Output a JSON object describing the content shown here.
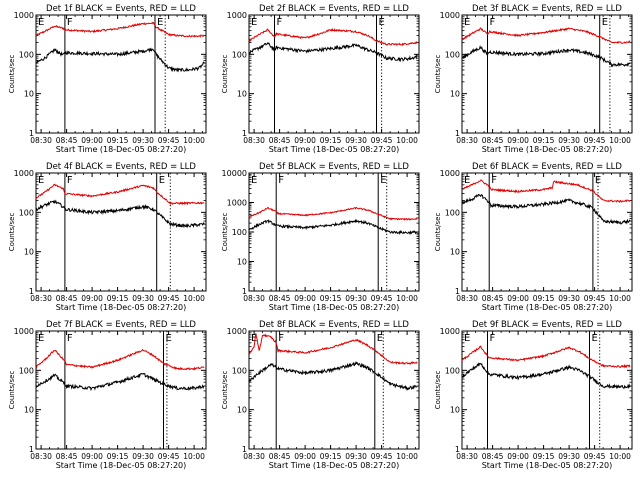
{
  "colors": {
    "events": "#000000",
    "lld": "#e00000",
    "background": "#ffffff",
    "axes": "#000000"
  },
  "common": {
    "xlabel": "Start Time (18-Dec-05 08:27:20)",
    "ylabel": "Counts/sec",
    "x_tick_labels": [
      "08:30",
      "08:45",
      "09:00",
      "09:15",
      "09:30",
      "09:45",
      "10:00"
    ],
    "y_tick_labels": [
      "1",
      "10",
      "100",
      "1000"
    ],
    "region_labels": [
      "E",
      "F",
      "E"
    ]
  },
  "chart_data": [
    {
      "type": "line",
      "title": "Det 1f BLACK = Events, RED = LLD",
      "xlabel": "Start Time (18-Dec-05 08:27:20)",
      "ylabel": "Counts/sec",
      "yscale": "log",
      "ylim": [
        1,
        1000
      ],
      "xlim": [
        "08:27",
        "10:07"
      ],
      "solid_lines": [
        "08:44",
        "09:37"
      ],
      "dotted_lines": [
        "09:43"
      ],
      "series": [
        {
          "name": "BLACK = Events",
          "x": [
            "08:27",
            "08:32",
            "08:38",
            "08:43",
            "08:44",
            "09:00",
            "09:15",
            "09:30",
            "09:36",
            "09:38",
            "09:45",
            "09:50",
            "09:57",
            "10:03",
            "10:06"
          ],
          "y": [
            60,
            80,
            130,
            95,
            110,
            105,
            100,
            120,
            140,
            95,
            45,
            40,
            40,
            45,
            60
          ]
        },
        {
          "name": "RED = LLD",
          "x": [
            "08:27",
            "08:32",
            "08:38",
            "08:43",
            "08:44",
            "09:00",
            "09:15",
            "09:30",
            "09:36",
            "09:38",
            "09:45",
            "09:50",
            "09:57",
            "10:03",
            "10:06"
          ],
          "y": [
            300,
            380,
            520,
            460,
            420,
            380,
            450,
            600,
            620,
            480,
            320,
            300,
            290,
            290,
            300
          ]
        }
      ]
    },
    {
      "type": "line",
      "title": "Det 2f BLACK = Events, RED = LLD",
      "xlabel": "Start Time (18-Dec-05 08:27:20)",
      "ylabel": "Counts/sec",
      "yscale": "log",
      "ylim": [
        1,
        1000
      ],
      "xlim": [
        "08:27",
        "10:07"
      ],
      "solid_lines": [
        "08:42",
        "09:42"
      ],
      "dotted_lines": [
        "09:45"
      ],
      "series": [
        {
          "name": "BLACK = Events",
          "x": [
            "08:27",
            "08:32",
            "08:38",
            "08:42",
            "08:43",
            "09:00",
            "09:15",
            "09:30",
            "09:37",
            "09:42",
            "09:48",
            "09:57",
            "10:03",
            "10:06"
          ],
          "y": [
            110,
            140,
            190,
            130,
            150,
            120,
            140,
            170,
            130,
            110,
            80,
            75,
            80,
            90
          ]
        },
        {
          "name": "RED = LLD",
          "x": [
            "08:27",
            "08:32",
            "08:38",
            "08:42",
            "08:43",
            "09:00",
            "09:10",
            "09:15",
            "09:30",
            "09:37",
            "09:42",
            "09:48",
            "09:57",
            "10:06"
          ],
          "y": [
            220,
            300,
            420,
            280,
            330,
            260,
            350,
            420,
            380,
            300,
            220,
            180,
            180,
            200
          ]
        }
      ]
    },
    {
      "type": "line",
      "title": "Det 3f BLACK = Events, RED = LLD",
      "xlabel": "Start Time (18-Dec-05 08:27:20)",
      "ylabel": "Counts/sec",
      "yscale": "log",
      "ylim": [
        1,
        1000
      ],
      "xlim": [
        "08:27",
        "10:07"
      ],
      "solid_lines": [
        "08:42",
        "09:48"
      ],
      "dotted_lines": [
        "09:54"
      ],
      "series": [
        {
          "name": "BLACK = Events",
          "x": [
            "08:27",
            "08:32",
            "08:38",
            "08:42",
            "08:43",
            "09:00",
            "09:15",
            "09:30",
            "09:40",
            "09:48",
            "09:55",
            "10:03",
            "10:06"
          ],
          "y": [
            80,
            110,
            150,
            100,
            115,
            100,
            105,
            130,
            110,
            85,
            55,
            55,
            60
          ]
        },
        {
          "name": "RED = LLD",
          "x": [
            "08:27",
            "08:32",
            "08:38",
            "08:42",
            "08:43",
            "09:00",
            "09:15",
            "09:30",
            "09:40",
            "09:48",
            "09:55",
            "10:03",
            "10:06"
          ],
          "y": [
            240,
            320,
            450,
            330,
            380,
            300,
            360,
            450,
            380,
            280,
            200,
            200,
            210
          ]
        }
      ]
    },
    {
      "type": "line",
      "title": "Det 4f BLACK = Events, RED = LLD",
      "xlabel": "Start Time (18-Dec-05 08:27:20)",
      "ylabel": "Counts/sec",
      "yscale": "log",
      "ylim": [
        1,
        1000
      ],
      "xlim": [
        "08:27",
        "10:07"
      ],
      "solid_lines": [
        "08:44",
        "09:38"
      ],
      "dotted_lines": [
        "09:46"
      ],
      "series": [
        {
          "name": "BLACK = Events",
          "x": [
            "08:27",
            "08:32",
            "08:38",
            "08:43",
            "08:44",
            "09:00",
            "09:15",
            "09:30",
            "09:36",
            "09:38",
            "09:46",
            "09:55",
            "10:06"
          ],
          "y": [
            120,
            150,
            190,
            140,
            120,
            100,
            110,
            140,
            120,
            100,
            50,
            45,
            50
          ]
        },
        {
          "name": "RED = LLD",
          "x": [
            "08:27",
            "08:32",
            "08:38",
            "08:43",
            "08:44",
            "09:00",
            "09:15",
            "09:30",
            "09:36",
            "09:38",
            "09:46",
            "09:55",
            "10:06"
          ],
          "y": [
            230,
            320,
            500,
            400,
            300,
            260,
            330,
            480,
            420,
            330,
            170,
            170,
            175
          ]
        }
      ]
    },
    {
      "type": "line",
      "title": "Det 5f BLACK = Events, RED = LLD",
      "xlabel": "Start Time (18-Dec-05 08:27:20)",
      "ylabel": "Counts/sec",
      "yscale": "log",
      "ylim": [
        1,
        10000
      ],
      "xlim": [
        "08:27",
        "10:07"
      ],
      "solid_lines": [
        "08:43",
        "09:43"
      ],
      "dotted_lines": [
        "09:48"
      ],
      "series": [
        {
          "name": "BLACK = Events",
          "x": [
            "08:27",
            "08:33",
            "08:38",
            "08:43",
            "08:44",
            "09:00",
            "09:15",
            "09:30",
            "09:37",
            "09:43",
            "09:50",
            "10:00",
            "10:06"
          ],
          "y": [
            120,
            180,
            240,
            170,
            160,
            140,
            170,
            240,
            200,
            140,
            100,
            95,
            100
          ]
        },
        {
          "name": "RED = LLD",
          "x": [
            "08:27",
            "08:33",
            "08:38",
            "08:43",
            "08:44",
            "09:00",
            "09:15",
            "09:30",
            "09:37",
            "09:43",
            "09:50",
            "10:00",
            "10:06"
          ],
          "y": [
            330,
            450,
            650,
            500,
            420,
            370,
            450,
            650,
            550,
            400,
            280,
            270,
            280
          ]
        }
      ]
    },
    {
      "type": "line",
      "title": "Det 6f BLACK = Events, RED = LLD",
      "xlabel": "Start Time (18-Dec-05 08:27:20)",
      "ylabel": "Counts/sec",
      "yscale": "log",
      "ylim": [
        1,
        1000
      ],
      "xlim": [
        "08:27",
        "10:07"
      ],
      "solid_lines": [
        "08:43",
        "09:44"
      ],
      "dotted_lines": [
        "09:47"
      ],
      "series": [
        {
          "name": "BLACK = Events",
          "x": [
            "08:27",
            "08:32",
            "08:38",
            "08:43",
            "08:44",
            "09:00",
            "09:15",
            "09:30",
            "09:38",
            "09:44",
            "09:50",
            "10:00",
            "10:06"
          ],
          "y": [
            170,
            210,
            280,
            180,
            150,
            140,
            160,
            200,
            160,
            130,
            60,
            55,
            60
          ]
        },
        {
          "name": "RED = LLD",
          "x": [
            "08:27",
            "08:32",
            "08:38",
            "08:43",
            "08:44",
            "09:00",
            "09:15",
            "09:20",
            "09:21",
            "09:35",
            "09:44",
            "09:50",
            "10:00",
            "10:06"
          ],
          "y": [
            380,
            480,
            650,
            460,
            380,
            340,
            380,
            420,
            600,
            500,
            350,
            200,
            190,
            200
          ]
        }
      ]
    },
    {
      "type": "line",
      "title": "Det 7f BLACK = Events, RED = LLD",
      "xlabel": "Start Time (18-Dec-05 08:27:20)",
      "ylabel": "Counts/sec",
      "yscale": "log",
      "ylim": [
        1,
        1000
      ],
      "xlim": [
        "08:27",
        "10:07"
      ],
      "solid_lines": [
        "08:44",
        "09:42"
      ],
      "dotted_lines": [
        "09:44"
      ],
      "series": [
        {
          "name": "BLACK = Events",
          "x": [
            "08:27",
            "08:33",
            "08:38",
            "08:44",
            "08:45",
            "09:00",
            "09:15",
            "09:30",
            "09:36",
            "09:42",
            "09:50",
            "10:00",
            "10:06"
          ],
          "y": [
            40,
            55,
            75,
            45,
            40,
            35,
            50,
            80,
            60,
            45,
            35,
            35,
            40
          ]
        },
        {
          "name": "RED = LLD",
          "x": [
            "08:27",
            "08:33",
            "08:38",
            "08:44",
            "08:45",
            "09:00",
            "09:15",
            "09:30",
            "09:36",
            "09:42",
            "09:50",
            "10:00",
            "10:06"
          ],
          "y": [
            120,
            200,
            330,
            170,
            140,
            120,
            180,
            330,
            240,
            150,
            110,
            110,
            120
          ]
        }
      ]
    },
    {
      "type": "line",
      "title": "Det 8f BLACK = Events, RED = LLD",
      "xlabel": "Start Time (18-Dec-05 08:27:20)",
      "ylabel": "Counts/sec",
      "yscale": "log",
      "ylim": [
        1,
        1000
      ],
      "xlim": [
        "08:27",
        "10:07"
      ],
      "solid_lines": [
        "08:43",
        "09:41"
      ],
      "dotted_lines": [
        "09:46"
      ],
      "series": [
        {
          "name": "BLACK = Events",
          "x": [
            "08:27",
            "08:30",
            "08:35",
            "08:40",
            "08:43",
            "08:44",
            "09:00",
            "09:15",
            "09:30",
            "09:36",
            "09:41",
            "09:50",
            "10:00",
            "10:06"
          ],
          "y": [
            50,
            70,
            100,
            140,
            120,
            110,
            85,
            100,
            150,
            120,
            90,
            45,
            35,
            40
          ]
        },
        {
          "name": "RED = LLD",
          "x": [
            "08:27",
            "08:30",
            "08:31",
            "08:33",
            "08:35",
            "08:40",
            "08:43",
            "08:44",
            "09:00",
            "09:15",
            "09:30",
            "09:36",
            "09:41",
            "09:50",
            "10:00",
            "10:06"
          ],
          "y": [
            250,
            400,
            900,
            300,
            800,
            700,
            500,
            320,
            280,
            380,
            600,
            450,
            330,
            160,
            150,
            160
          ]
        }
      ]
    },
    {
      "type": "line",
      "title": "Det 9f BLACK = Events, RED = LLD",
      "xlabel": "Start Time (18-Dec-05 08:27:20)",
      "ylabel": "Counts/sec",
      "yscale": "log",
      "ylim": [
        1,
        1000
      ],
      "xlim": [
        "08:27",
        "10:07"
      ],
      "solid_lines": [
        "08:42",
        "09:42"
      ],
      "dotted_lines": [
        "09:48"
      ],
      "series": [
        {
          "name": "BLACK = Events",
          "x": [
            "08:27",
            "08:32",
            "08:38",
            "08:42",
            "08:43",
            "09:00",
            "09:15",
            "09:30",
            "09:36",
            "09:42",
            "09:50",
            "10:00",
            "10:06"
          ],
          "y": [
            70,
            100,
            150,
            90,
            80,
            65,
            80,
            120,
            100,
            70,
            40,
            38,
            40
          ]
        },
        {
          "name": "RED = LLD",
          "x": [
            "08:27",
            "08:32",
            "08:38",
            "08:42",
            "08:43",
            "09:00",
            "09:15",
            "09:30",
            "09:36",
            "09:42",
            "09:50",
            "10:00",
            "10:06"
          ],
          "y": [
            180,
            260,
            400,
            230,
            210,
            180,
            230,
            380,
            300,
            200,
            130,
            125,
            130
          ]
        }
      ]
    }
  ]
}
